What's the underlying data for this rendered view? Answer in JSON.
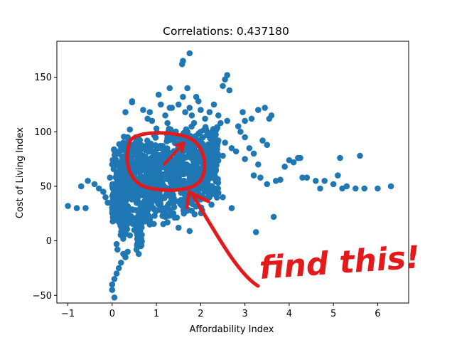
{
  "chart_data": {
    "type": "scatter",
    "title": "Correlations: 0.437180",
    "xlabel": "Affordability Index",
    "ylabel": "Cost of Living Index",
    "xlim": [
      -1.25,
      6.7
    ],
    "ylim": [
      -57,
      183
    ],
    "xticks": [
      -1,
      0,
      1,
      2,
      3,
      4,
      5,
      6
    ],
    "yticks": [
      -50,
      0,
      50,
      100,
      150
    ],
    "grid": false,
    "point_color": "#1f77b4",
    "series": [
      {
        "values": [
          [
            -1.0,
            32
          ],
          [
            -0.8,
            30
          ],
          [
            -0.6,
            30
          ],
          [
            -0.7,
            50
          ],
          [
            -0.55,
            55
          ],
          [
            -0.4,
            52
          ],
          [
            -0.3,
            48
          ],
          [
            -0.2,
            45
          ],
          [
            -0.15,
            40
          ],
          [
            -0.1,
            35
          ],
          [
            0.0,
            30
          ],
          [
            -0.05,
            58
          ],
          [
            0.1,
            62
          ],
          [
            0.0,
            70
          ],
          [
            0.05,
            75
          ],
          [
            0.15,
            80
          ],
          [
            0.2,
            85
          ],
          [
            0.25,
            90
          ],
          [
            0.35,
            95
          ],
          [
            0.4,
            102
          ],
          [
            0.3,
            118
          ],
          [
            0.45,
            128
          ],
          [
            0.45,
            127
          ],
          [
            0.7,
            120
          ],
          [
            0.85,
            118
          ],
          [
            0.8,
            112
          ],
          [
            1.0,
            103
          ],
          [
            0.9,
            110
          ],
          [
            1.1,
            125
          ],
          [
            1.2,
            115
          ],
          [
            1.3,
            122
          ],
          [
            1.25,
            108
          ],
          [
            1.5,
            125
          ],
          [
            1.6,
            132
          ],
          [
            1.65,
            118
          ],
          [
            1.7,
            140
          ],
          [
            1.75,
            122
          ],
          [
            1.8,
            115
          ],
          [
            1.85,
            108
          ],
          [
            1.9,
            132
          ],
          [
            1.95,
            128
          ],
          [
            2.0,
            120
          ],
          [
            2.1,
            112
          ],
          [
            2.2,
            118
          ],
          [
            2.3,
            125
          ],
          [
            2.4,
            115
          ],
          [
            2.45,
            108
          ],
          [
            2.5,
            142
          ],
          [
            2.6,
            110
          ],
          [
            2.65,
            138
          ],
          [
            2.55,
            148
          ],
          [
            2.6,
            152
          ],
          [
            1.75,
            172
          ],
          [
            1.6,
            165
          ],
          [
            1.58,
            162
          ],
          [
            1.3,
            140
          ],
          [
            1.05,
            134
          ],
          [
            1.35,
            122
          ],
          [
            2.0,
            100
          ],
          [
            2.15,
            98
          ],
          [
            2.3,
            95
          ],
          [
            2.4,
            92
          ],
          [
            2.55,
            90
          ],
          [
            2.7,
            85
          ],
          [
            2.8,
            82
          ],
          [
            2.9,
            100
          ],
          [
            3.0,
            95
          ],
          [
            3.1,
            85
          ],
          [
            3.2,
            80
          ],
          [
            3.3,
            70
          ],
          [
            3.4,
            92
          ],
          [
            3.5,
            88
          ],
          [
            3.55,
            112
          ],
          [
            3.6,
            115
          ],
          [
            3.45,
            122
          ],
          [
            3.3,
            120
          ],
          [
            3.15,
            112
          ],
          [
            3.0,
            110
          ],
          [
            2.95,
            118
          ],
          [
            2.85,
            105
          ],
          [
            3.0,
            75
          ],
          [
            3.2,
            60
          ],
          [
            3.35,
            58
          ],
          [
            3.5,
            52
          ],
          [
            3.7,
            55
          ],
          [
            3.8,
            56
          ],
          [
            3.9,
            68
          ],
          [
            4.0,
            74
          ],
          [
            4.1,
            72
          ],
          [
            4.2,
            76
          ],
          [
            4.25,
            76
          ],
          [
            4.3,
            58
          ],
          [
            4.4,
            58
          ],
          [
            4.6,
            55
          ],
          [
            4.8,
            55
          ],
          [
            5.0,
            52
          ],
          [
            5.1,
            60
          ],
          [
            5.2,
            48
          ],
          [
            5.3,
            50
          ],
          [
            5.5,
            48
          ],
          [
            5.6,
            78
          ],
          [
            5.7,
            48
          ],
          [
            6.0,
            48
          ],
          [
            6.3,
            50
          ],
          [
            4.7,
            48
          ],
          [
            5.15,
            76
          ],
          [
            3.65,
            22
          ],
          [
            3.25,
            8
          ],
          [
            2.7,
            30
          ],
          [
            2.5,
            40
          ],
          [
            2.4,
            44
          ],
          [
            2.3,
            45
          ],
          [
            2.2,
            40
          ],
          [
            2.0,
            38
          ],
          [
            1.8,
            35
          ],
          [
            1.6,
            33
          ],
          [
            1.4,
            31
          ],
          [
            1.2,
            30
          ],
          [
            1.0,
            28
          ],
          [
            0.8,
            22
          ],
          [
            0.7,
            20
          ],
          [
            0.6,
            15
          ],
          [
            0.5,
            10
          ],
          [
            0.4,
            5
          ],
          [
            0.35,
            -10
          ],
          [
            0.3,
            -15
          ],
          [
            0.2,
            -20
          ],
          [
            0.15,
            -25
          ],
          [
            0.1,
            -30
          ],
          [
            0.05,
            -35
          ],
          [
            0.0,
            -40
          ],
          [
            0.0,
            -45
          ],
          [
            0.05,
            -52
          ],
          [
            0.1,
            -3
          ],
          [
            0.12,
            -8
          ],
          [
            0.25,
            -12
          ],
          [
            0.55,
            -8
          ],
          [
            0.6,
            -12
          ],
          [
            0.6,
            0
          ],
          [
            0.6,
            5
          ],
          [
            0.6,
            10
          ],
          [
            0.6,
            15
          ],
          [
            0.85,
            15
          ],
          [
            0.85,
            22
          ],
          [
            1.2,
            22
          ],
          [
            1.25,
            17
          ],
          [
            1.5,
            12
          ],
          [
            1.75,
            9
          ],
          [
            0.3,
            7
          ],
          [
            0.25,
            2
          ],
          [
            0.2,
            45
          ],
          [
            0.0,
            35
          ],
          [
            0.2,
            15
          ],
          [
            0.4,
            20
          ],
          [
            1.3,
            78
          ],
          [
            1.1,
            85
          ],
          [
            1.4,
            92
          ],
          [
            1.6,
            88
          ],
          [
            1.8,
            82
          ],
          [
            2.5,
            78
          ]
        ]
      }
    ],
    "cluster": {
      "x_range": [
        0.0,
        2.4
      ],
      "y_range": [
        25,
        105
      ],
      "count": 1100
    }
  },
  "annotation": {
    "text": "find this!",
    "color": "#e31a1c",
    "circle_center": [
      1.05,
      71
    ]
  }
}
